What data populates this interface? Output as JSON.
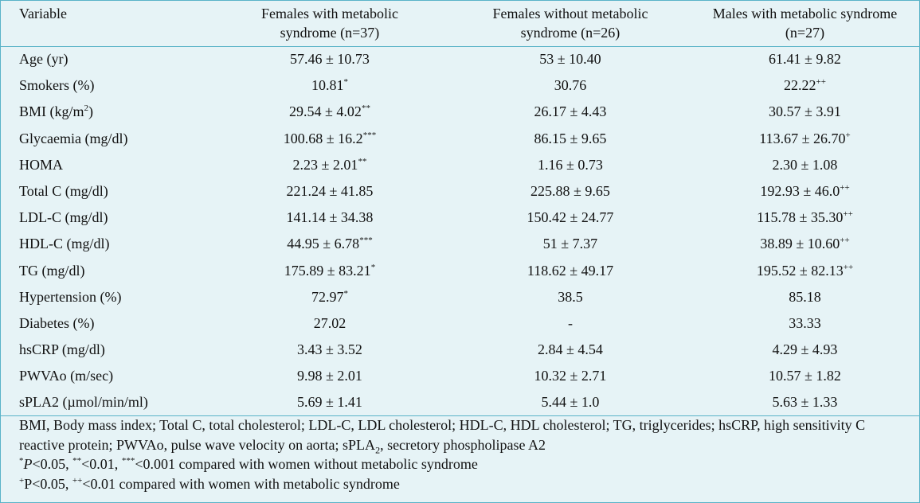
{
  "table": {
    "headers": [
      "Variable",
      "Females with metabolic syndrome (n=37)",
      "Females without metabolic syndrome (n=26)",
      "Males with metabolic syndrome (n=27)"
    ],
    "header_lines": [
      [
        "Variable"
      ],
      [
        "Females with metabolic",
        "syndrome (n=37)"
      ],
      [
        "Females without metabolic",
        "syndrome (n=26)"
      ],
      [
        "Males with metabolic syndrome",
        "(n=27)"
      ]
    ],
    "rows": [
      {
        "variable": "Age (yr)",
        "unit_sup": "",
        "var_tail": "",
        "f_ms": "57.46 ± 10.73",
        "f_ms_sup": "",
        "f_noms": "53 ± 10.40",
        "m_ms": "61.41 ± 9.82",
        "m_ms_sup": ""
      },
      {
        "variable": "Smokers (%)",
        "unit_sup": "",
        "var_tail": "",
        "f_ms": "10.81",
        "f_ms_sup": "*",
        "f_noms": "30.76",
        "m_ms": "22.22",
        "m_ms_sup": "++"
      },
      {
        "variable": "BMI (kg/m",
        "unit_sup": "2",
        "var_tail": ")",
        "f_ms": "29.54 ± 4.02",
        "f_ms_sup": "**",
        "f_noms": "26.17 ± 4.43",
        "m_ms": "30.57 ± 3.91",
        "m_ms_sup": ""
      },
      {
        "variable": "Glycaemia (mg/dl)",
        "unit_sup": "",
        "var_tail": "",
        "f_ms": "100.68 ± 16.2",
        "f_ms_sup": "***",
        "f_noms": "86.15 ± 9.65",
        "m_ms": "113.67 ± 26.70",
        "m_ms_sup": "+"
      },
      {
        "variable": "HOMA",
        "unit_sup": "",
        "var_tail": "",
        "f_ms": "2.23 ± 2.01",
        "f_ms_sup": "**",
        "f_noms": "1.16 ± 0.73",
        "m_ms": "2.30 ± 1.08",
        "m_ms_sup": ""
      },
      {
        "variable": "Total C (mg/dl)",
        "unit_sup": "",
        "var_tail": "",
        "f_ms": "221.24 ± 41.85",
        "f_ms_sup": "",
        "f_noms": "225.88 ± 9.65",
        "m_ms": "192.93 ± 46.0",
        "m_ms_sup": "++"
      },
      {
        "variable": "LDL-C (mg/dl)",
        "unit_sup": "",
        "var_tail": "",
        "f_ms": "141.14 ± 34.38",
        "f_ms_sup": "",
        "f_noms": "150.42 ± 24.77",
        "m_ms": "115.78 ± 35.30",
        "m_ms_sup": "++"
      },
      {
        "variable": "HDL-C (mg/dl)",
        "unit_sup": "",
        "var_tail": "",
        "f_ms": "44.95 ± 6.78",
        "f_ms_sup": "***",
        "f_noms": "51 ± 7.37",
        "m_ms": "38.89 ± 10.60",
        "m_ms_sup": "++"
      },
      {
        "variable": "TG (mg/dl)",
        "unit_sup": "",
        "var_tail": "",
        "f_ms": "175.89 ± 83.21",
        "f_ms_sup": "*",
        "f_noms": "118.62 ± 49.17",
        "m_ms": "195.52 ± 82.13",
        "m_ms_sup": "++"
      },
      {
        "variable": "Hypertension (%)",
        "unit_sup": "",
        "var_tail": "",
        "f_ms": "72.97",
        "f_ms_sup": "*",
        "f_noms": "38.5",
        "m_ms": "85.18",
        "m_ms_sup": ""
      },
      {
        "variable": "Diabetes (%)",
        "unit_sup": "",
        "var_tail": "",
        "f_ms": "27.02",
        "f_ms_sup": "",
        "f_noms": "-",
        "m_ms": "33.33",
        "m_ms_sup": ""
      },
      {
        "variable": "hsCRP (mg/dl)",
        "unit_sup": "",
        "var_tail": "",
        "f_ms": "3.43 ± 3.52",
        "f_ms_sup": "",
        "f_noms": "2.84 ± 4.54",
        "m_ms": "4.29 ± 4.93",
        "m_ms_sup": ""
      },
      {
        "variable": "PWVAo (m/sec)",
        "unit_sup": "",
        "var_tail": "",
        "f_ms": "9.98 ± 2.01",
        "f_ms_sup": "",
        "f_noms": "10.32 ± 2.71",
        "m_ms": "10.57 ± 1.82",
        "m_ms_sup": ""
      },
      {
        "variable": "sPLA2 (µmol/min/ml)",
        "unit_sup": "",
        "var_tail": "",
        "f_ms": "5.69 ± 1.41",
        "f_ms_sup": "",
        "f_noms": "5.44 ± 1.0",
        "m_ms": "5.63 ± 1.33",
        "m_ms_sup": ""
      }
    ]
  },
  "footnotes": {
    "abbrev_part1": "BMI, Body mass index; Total C, total cholesterol; LDL-C, LDL cholesterol; HDL-C, HDL cholesterol; TG, triglycerides; hsCRP, high sensitivity C reactive protein; PWVAo, pulse wave velocity on aorta; sPLA",
    "abbrev_sub": "2",
    "abbrev_part2": ", secretory phospholipase A2",
    "note1": {
      "s1": "*",
      "p": "P",
      "t1": "<0.05, ",
      "s2": "**",
      "t2": "<0.01, ",
      "s3": "***",
      "t3": "<0.001 compared with women without metabolic syndrome"
    },
    "note2": {
      "s1": "+",
      "t1": "P<0.05, ",
      "s2": "++",
      "t2": "<0.01 compared with women with metabolic syndrome"
    }
  }
}
